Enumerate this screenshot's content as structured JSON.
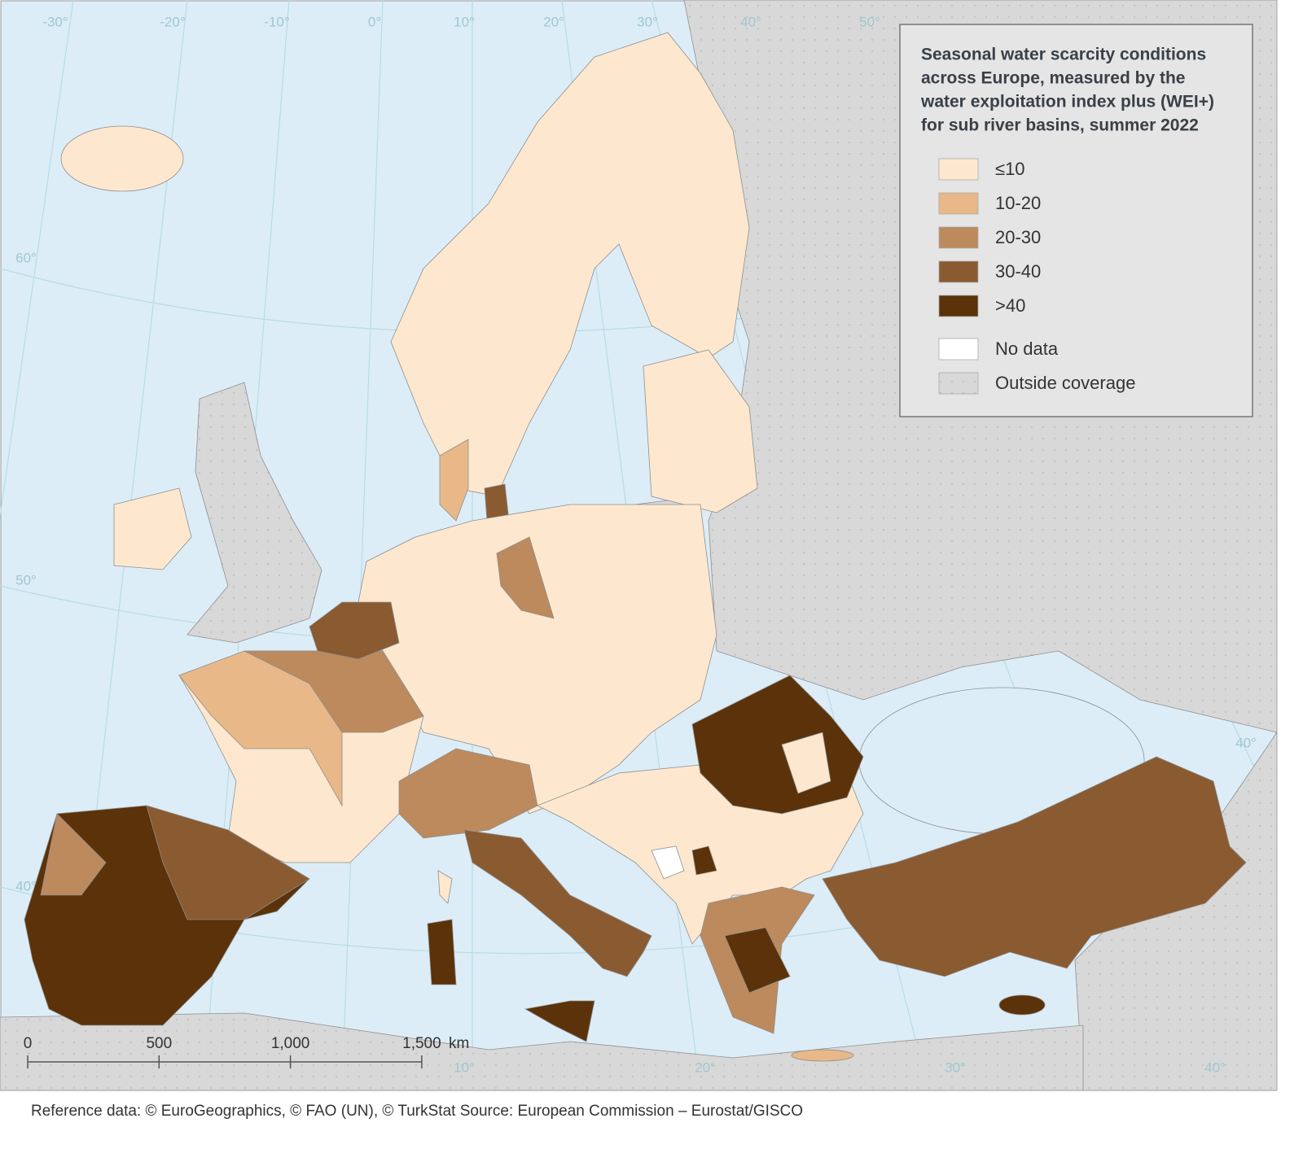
{
  "legend": {
    "title_lines": [
      "Seasonal water scarcity conditions",
      "across Europe, measured by the",
      "water exploitation index plus (WEI+)",
      "for sub river basins, summer 2022"
    ],
    "items": [
      {
        "label": "≤10",
        "color": "#fde8cf"
      },
      {
        "label": "10-20",
        "color": "#e8b888"
      },
      {
        "label": "20-30",
        "color": "#bd8a5d"
      },
      {
        "label": "30-40",
        "color": "#8a5a31"
      },
      {
        "label": ">40",
        "color": "#5b3209"
      },
      {
        "label": "No data",
        "color": "#ffffff"
      },
      {
        "label": "Outside coverage",
        "color": "#d8d8d8"
      }
    ]
  },
  "scale_bar": {
    "labels": [
      "0",
      "500",
      "1,000",
      "1,500"
    ],
    "unit": "km"
  },
  "graticule": {
    "top": [
      "-30°",
      "-20°",
      "-10°",
      "0°",
      "10°",
      "20°",
      "30°",
      "40°",
      "50°"
    ],
    "left": [
      "60°",
      "50°",
      "40°"
    ],
    "bottom": [
      "10°",
      "20°",
      "30°",
      "40°"
    ],
    "right": [
      "40°"
    ]
  },
  "source": "Reference data: © EuroGeographics, © FAO (UN), © TurkStat Source: European Commission – Eurostat/GISCO"
}
